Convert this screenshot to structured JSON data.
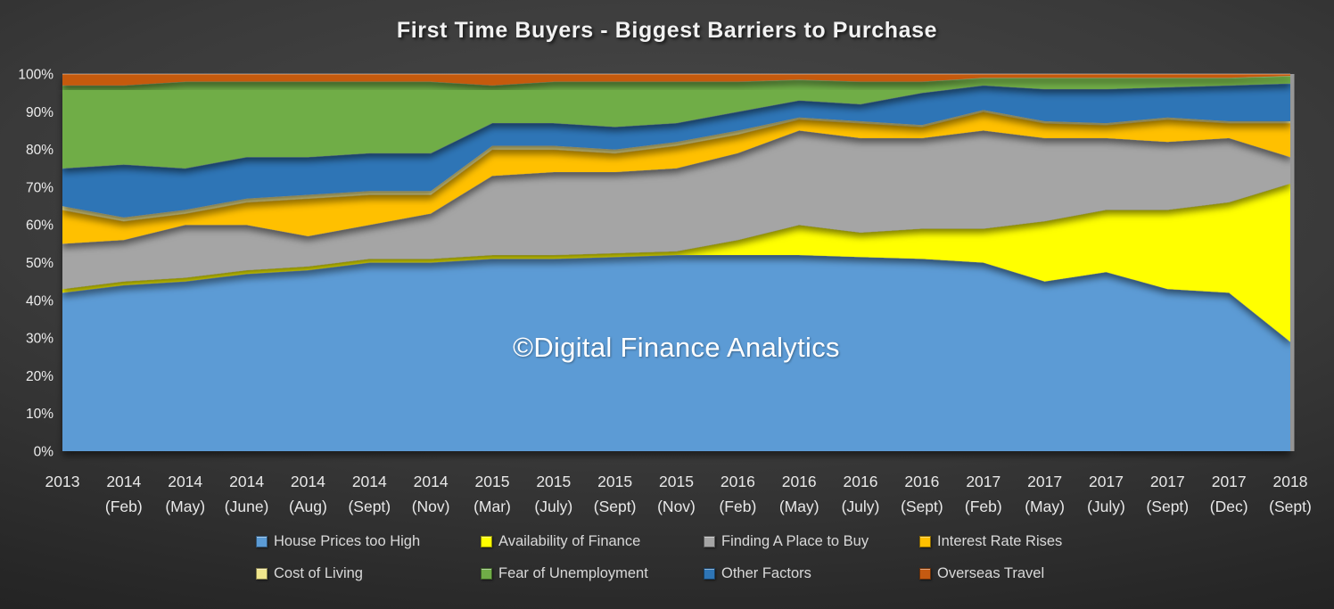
{
  "title": "First Time Buyers -  Biggest Barriers to Purchase",
  "watermark": "©Digital Finance Analytics",
  "chart_data": {
    "type": "area",
    "stacked": true,
    "percent_stacked": true,
    "title": "First Time Buyers -  Biggest Barriers to Purchase",
    "ylim": [
      0,
      100
    ],
    "grid": false,
    "legend_position": "bottom",
    "y_ticks": [
      "0%",
      "10%",
      "20%",
      "30%",
      "40%",
      "50%",
      "60%",
      "70%",
      "80%",
      "90%",
      "100%"
    ],
    "x_labels": [
      {
        "year": "2013",
        "month": ""
      },
      {
        "year": "2014",
        "month": "(Feb)"
      },
      {
        "year": "2014",
        "month": "(May)"
      },
      {
        "year": "2014",
        "month": "(June)"
      },
      {
        "year": "2014",
        "month": "(Aug)"
      },
      {
        "year": "2014",
        "month": "(Sept)"
      },
      {
        "year": "2014",
        "month": "(Nov)"
      },
      {
        "year": "2015",
        "month": "(Mar)"
      },
      {
        "year": "2015",
        "month": "(July)"
      },
      {
        "year": "2015",
        "month": "(Sept)"
      },
      {
        "year": "2015",
        "month": "(Nov)"
      },
      {
        "year": "2016",
        "month": "(Feb)"
      },
      {
        "year": "2016",
        "month": "(May)"
      },
      {
        "year": "2016",
        "month": "(July)"
      },
      {
        "year": "2016",
        "month": "(Sept)"
      },
      {
        "year": "2017",
        "month": "(Feb)"
      },
      {
        "year": "2017",
        "month": "(May)"
      },
      {
        "year": "2017",
        "month": "(July)"
      },
      {
        "year": "2017",
        "month": "(Sept)"
      },
      {
        "year": "2017",
        "month": "(Dec)"
      },
      {
        "year": "2018",
        "month": "(Sept)"
      }
    ],
    "series": [
      {
        "name": "House Prices too High",
        "color": "#5B9BD5",
        "values": [
          42,
          44,
          45,
          47,
          48,
          50,
          50,
          51,
          51,
          51.5,
          52,
          52,
          52,
          51.5,
          51,
          50,
          45,
          47.5,
          43,
          42,
          29
        ]
      },
      {
        "name": "Availability of Finance",
        "color": "#FFFF00",
        "values": [
          1,
          1,
          1,
          1,
          1,
          1,
          1,
          1,
          1,
          1,
          1,
          4,
          8,
          6.5,
          8,
          9,
          16,
          16.5,
          21,
          24,
          42
        ]
      },
      {
        "name": "Finding A Place to Buy",
        "color": "#A5A5A5",
        "values": [
          12,
          11,
          14,
          12,
          8,
          9,
          12,
          21,
          22,
          21.5,
          22,
          23,
          25,
          25,
          24,
          26,
          22,
          19,
          18,
          17,
          7
        ]
      },
      {
        "name": "Interest Rate Rises",
        "color": "#FFC000",
        "values": [
          9,
          5,
          3,
          6,
          10,
          8,
          5,
          7,
          6,
          5,
          6,
          5,
          3,
          4,
          3,
          5,
          4,
          3.5,
          6,
          4,
          9
        ]
      },
      {
        "name": "Cost of Living",
        "color": "#F0E68C",
        "values": [
          1,
          1,
          1,
          1,
          1,
          1,
          1,
          1,
          1,
          1,
          1,
          1,
          0.5,
          0.5,
          0.5,
          0.5,
          0.5,
          0.5,
          0.5,
          0.5,
          0.5
        ]
      },
      {
        "name": "Other Factors",
        "color": "#2E75B6",
        "values": [
          10,
          14,
          11,
          11,
          10,
          10,
          10,
          6,
          6,
          6,
          5,
          5,
          4.5,
          4.5,
          8.5,
          6.5,
          8.5,
          9,
          8,
          9.5,
          10
        ]
      },
      {
        "name": "Fear of Unemployment",
        "color": "#70AD47",
        "values": [
          22,
          21,
          23,
          20,
          20,
          19,
          19,
          10,
          11,
          12,
          11,
          8,
          5.5,
          6,
          3,
          2,
          3,
          3,
          2.5,
          2,
          2
        ]
      },
      {
        "name": "Overseas Travel",
        "color": "#C55A11",
        "values": [
          3,
          3,
          2,
          2,
          2,
          2,
          2,
          3,
          2,
          2,
          2,
          2,
          1.5,
          2,
          2,
          1,
          1,
          1,
          1,
          1,
          0.5
        ]
      }
    ],
    "legend_rows": [
      [
        "House Prices too High",
        "Availability of Finance",
        "Finding A Place to Buy",
        "Interest Rate Rises"
      ],
      [
        "Cost of Living",
        "Fear of Unemployment",
        "Other Factors",
        "Overseas Travel"
      ]
    ]
  }
}
